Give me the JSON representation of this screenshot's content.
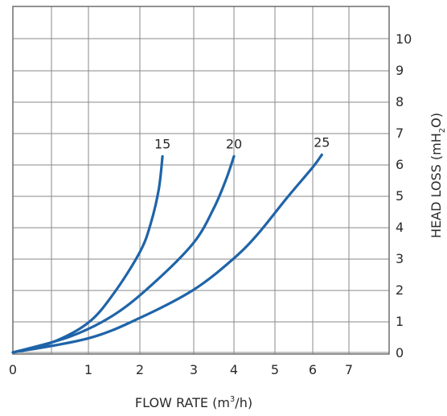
{
  "chart_data": {
    "type": "line",
    "xlabel_parts": {
      "main": "FLOW RATE (m",
      "sup": "3",
      "tail": "/h)"
    },
    "ylabel_parts": {
      "main": "HEAD LOSS (mH",
      "sub": "2",
      "tail": "O)"
    },
    "x_tick_labels": [
      "0",
      "1",
      "2",
      "3",
      "4",
      "5",
      "6",
      "7"
    ],
    "y_tick_labels": [
      "0",
      "1",
      "2",
      "3",
      "4",
      "5",
      "6",
      "7",
      "8",
      "9",
      "10"
    ],
    "ylim": [
      0,
      10
    ],
    "grid": true,
    "series_color": "#1f64a8",
    "series": [
      {
        "name": "15",
        "points": [
          {
            "x": 0,
            "y": 0
          },
          {
            "x": 0.5,
            "y": 0.3
          },
          {
            "x": 1.0,
            "y": 0.95
          },
          {
            "x": 1.5,
            "y": 1.9
          },
          {
            "x": 2.0,
            "y": 3.2
          },
          {
            "x": 2.2,
            "y": 4.1
          },
          {
            "x": 2.35,
            "y": 5.2
          },
          {
            "x": 2.42,
            "y": 6.25
          }
        ]
      },
      {
        "name": "20",
        "points": [
          {
            "x": 0,
            "y": 0
          },
          {
            "x": 0.75,
            "y": 0.5
          },
          {
            "x": 1.5,
            "y": 1.2
          },
          {
            "x": 2.25,
            "y": 2.2
          },
          {
            "x": 3.0,
            "y": 3.5
          },
          {
            "x": 3.5,
            "y": 4.6
          },
          {
            "x": 3.8,
            "y": 5.5
          },
          {
            "x": 4.0,
            "y": 6.25
          }
        ]
      },
      {
        "name": "25",
        "points": [
          {
            "x": 0,
            "y": 0
          },
          {
            "x": 1.0,
            "y": 0.45
          },
          {
            "x": 2.0,
            "y": 1.1
          },
          {
            "x": 3.0,
            "y": 2.0
          },
          {
            "x": 4.0,
            "y": 3.0
          },
          {
            "x": 4.6,
            "y": 3.8
          },
          {
            "x": 5.3,
            "y": 4.9
          },
          {
            "x": 6.0,
            "y": 5.9
          },
          {
            "x": 6.25,
            "y": 6.3
          }
        ]
      }
    ]
  }
}
